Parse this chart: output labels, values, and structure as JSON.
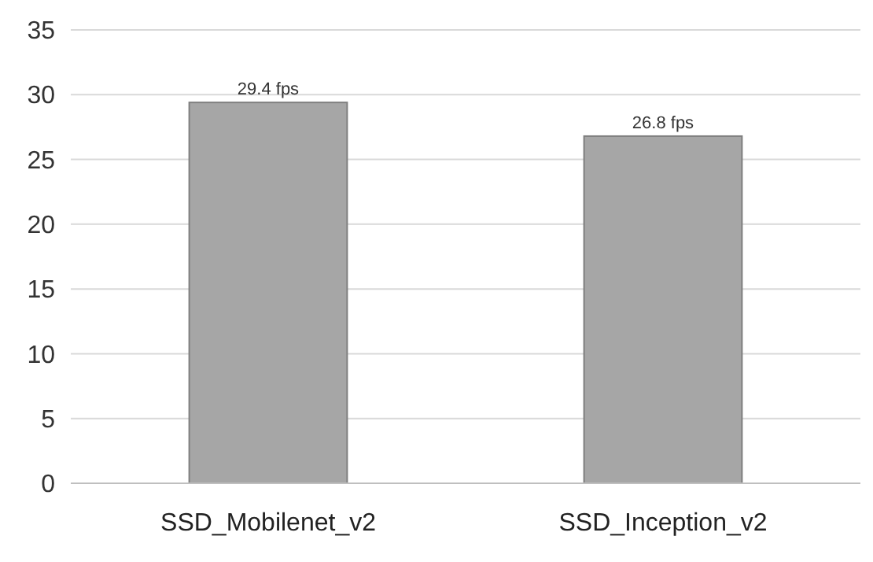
{
  "chart_data": {
    "type": "bar",
    "categories": [
      "SSD_Mobilenet_v2",
      "SSD_Inception_v2"
    ],
    "values": [
      29.4,
      26.8
    ],
    "value_labels": [
      "29.4 fps",
      "26.8 fps"
    ],
    "color": "#a6a6a6",
    "ylim": [
      0,
      35
    ],
    "yticks": [
      0,
      5,
      10,
      15,
      20,
      25,
      30,
      35
    ],
    "grid": "y"
  }
}
